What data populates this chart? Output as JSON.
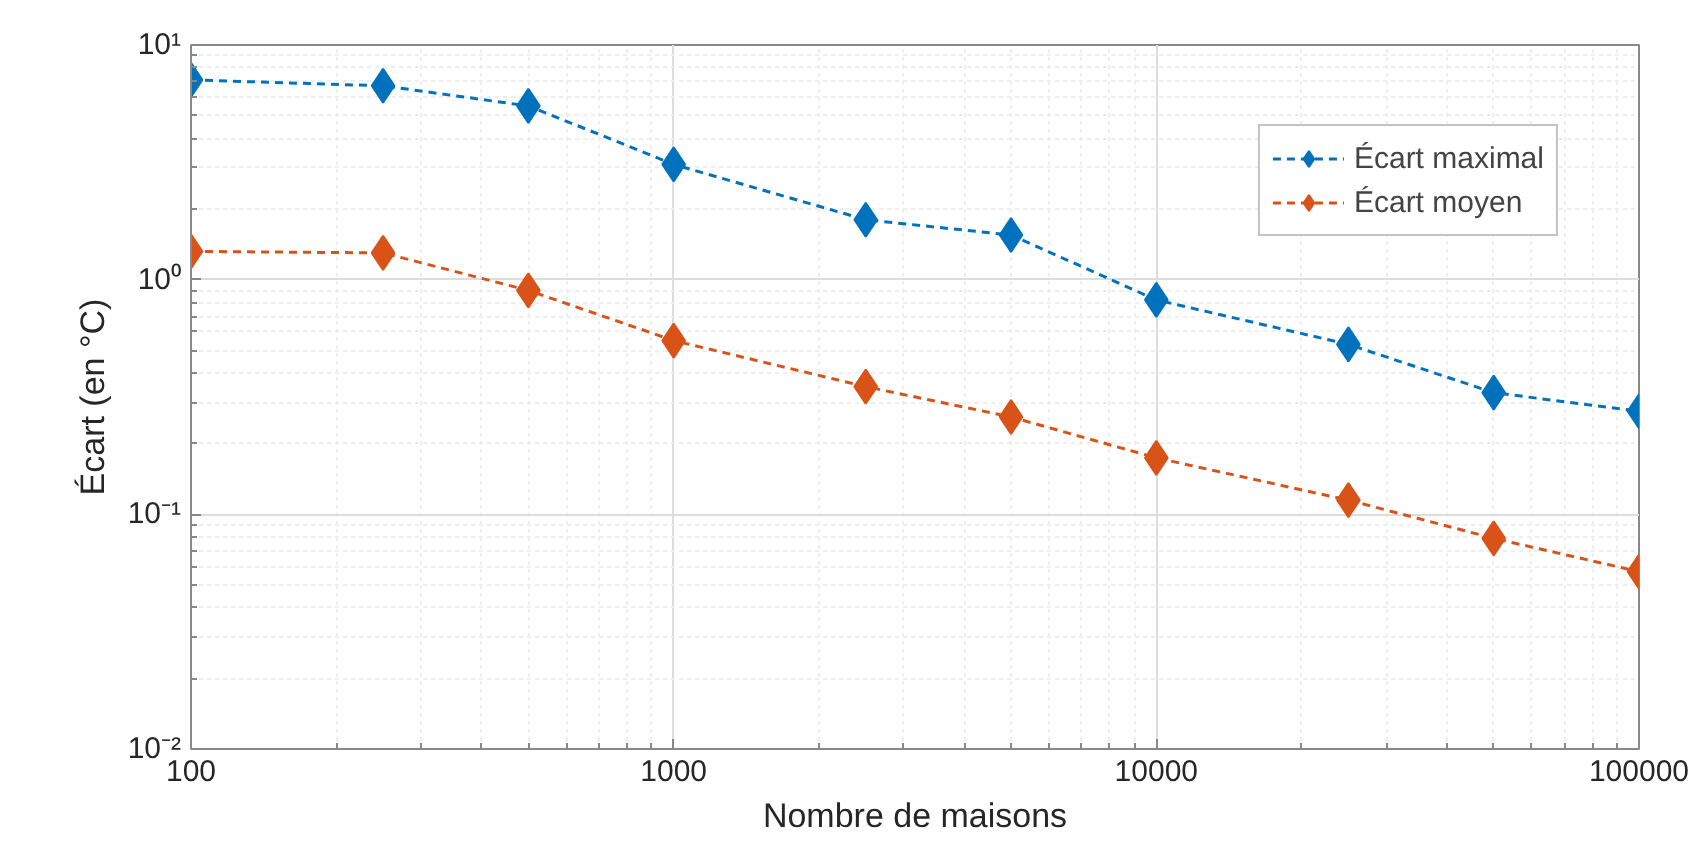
{
  "chart_data": {
    "type": "line",
    "xlabel": "Nombre de maisons",
    "ylabel": "Écart (en °C)",
    "x": [
      100,
      250,
      500,
      1000,
      2500,
      5000,
      10000,
      25000,
      50000,
      100000
    ],
    "series": [
      {
        "name": "Écart maximal",
        "color": "#0072bd",
        "values": [
          7.1,
          6.7,
          5.5,
          3.1,
          1.8,
          1.55,
          0.82,
          0.53,
          0.33,
          0.275
        ]
      },
      {
        "name": "Écart moyen",
        "color": "#d95319",
        "values": [
          1.32,
          1.3,
          0.9,
          0.55,
          0.35,
          0.26,
          0.174,
          0.115,
          0.079,
          0.057
        ]
      }
    ],
    "log": "xy",
    "xlim": [
      100,
      100000
    ],
    "ylim": [
      0.01,
      10
    ],
    "xticks": [
      100,
      1000,
      10000,
      100000
    ],
    "yticks": [
      {
        "value": 0.01,
        "label": "10⁻²"
      },
      {
        "value": 0.1,
        "label": "10⁻¹"
      },
      {
        "value": 1,
        "label": "10⁰"
      },
      {
        "value": 10,
        "label": "10¹"
      }
    ],
    "grid": true,
    "legend": "top right",
    "marker": "diamond",
    "line_style": "dashed"
  }
}
